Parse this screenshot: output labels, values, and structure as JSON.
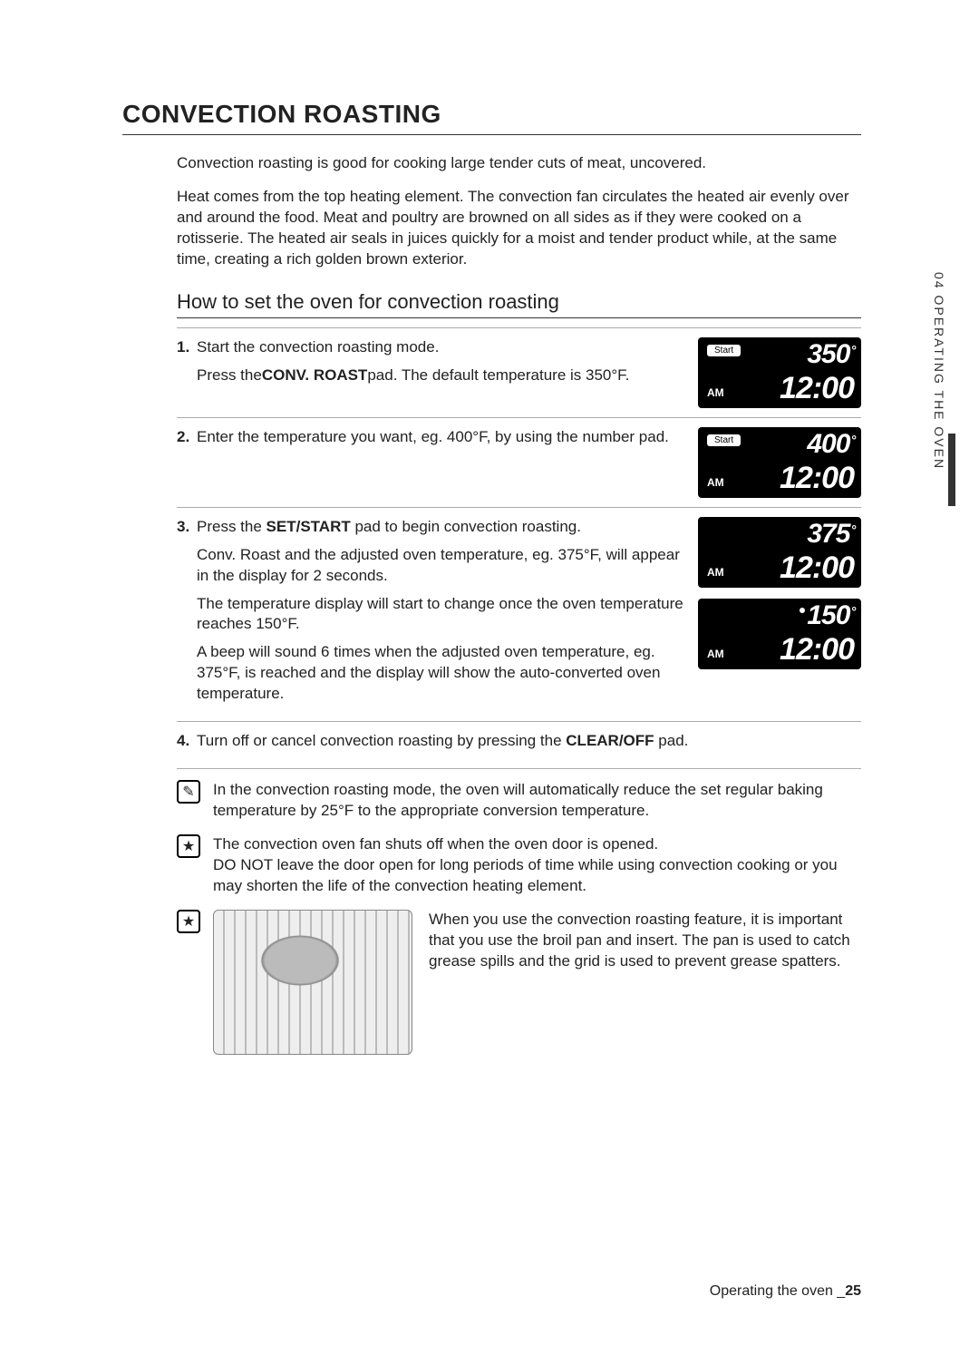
{
  "section_title": "CONVECTION ROASTING",
  "intro1": "Convection roasting is good for cooking large tender cuts of meat, uncovered.",
  "intro2": "Heat comes from the top heating element. The convection fan circulates the heated air evenly over and around the food. Meat and poultry are browned on all sides as if they were cooked on a rotisserie. The heated air seals in juices quickly for a moist and tender product while, at the same time, creating a rich golden brown exterior.",
  "subhead": "How to set the oven for convection roasting",
  "steps": [
    {
      "num": "1.",
      "lines": [
        "Start the convection roasting mode.",
        "Press the <b>CONV. ROAST</b> pad. The default temperature is 350°F."
      ],
      "displays": [
        {
          "start": true,
          "dot": false,
          "temp": "350",
          "am": "AM",
          "time": "12:00"
        }
      ]
    },
    {
      "num": "2.",
      "lines": [
        "Enter the temperature you want, eg. 400°F, by using the number pad."
      ],
      "displays": [
        {
          "start": true,
          "dot": false,
          "temp": "400",
          "am": "AM",
          "time": "12:00"
        }
      ]
    },
    {
      "num": "3.",
      "lines": [
        "Press the <b>SET/START</b> pad to begin convection roasting.",
        "Conv. Roast and the adjusted oven temperature, eg. 375°F, will appear in the display for 2 seconds.",
        "The temperature display will start to change once the oven temperature reaches 150°F.",
        "A beep will sound 6 times when the adjusted oven temperature, eg. 375°F, is reached and the display will show the auto-converted oven temperature."
      ],
      "displays": [
        {
          "start": false,
          "dot": false,
          "temp": "375",
          "am": "AM",
          "time": "12:00"
        },
        {
          "start": false,
          "dot": true,
          "temp": "150",
          "am": "AM",
          "time": "12:00"
        }
      ]
    },
    {
      "num": "4.",
      "lines": [
        "Turn off or cancel convection roasting by pressing the <b>CLEAR/OFF</b> pad."
      ],
      "displays": []
    }
  ],
  "notes": [
    {
      "icon": "✎",
      "text": "In the convection roasting mode, the oven will automatically reduce the set regular baking temperature by 25°F to the appropriate conversion temperature."
    },
    {
      "icon": "★",
      "text": "The convection oven fan shuts off when the oven door is opened.\nDO NOT leave the door open for long periods of time while using convection cooking or you may shorten the life of the convection heating element."
    }
  ],
  "roast_note": {
    "icon": "★",
    "text": "When you use the convection roasting feature, it is important that you use the broil pan and insert. The pan is used to catch grease spills and the grid is used to prevent grease spatters."
  },
  "side_tab": "04  OPERATING THE OVEN",
  "footer_prefix": "Operating the oven _",
  "footer_page": "25",
  "colors": {
    "text": "#222222",
    "bg": "#ffffff",
    "display_bg": "#000000",
    "display_fg": "#ffffff",
    "rule": "#aaaaaa"
  }
}
